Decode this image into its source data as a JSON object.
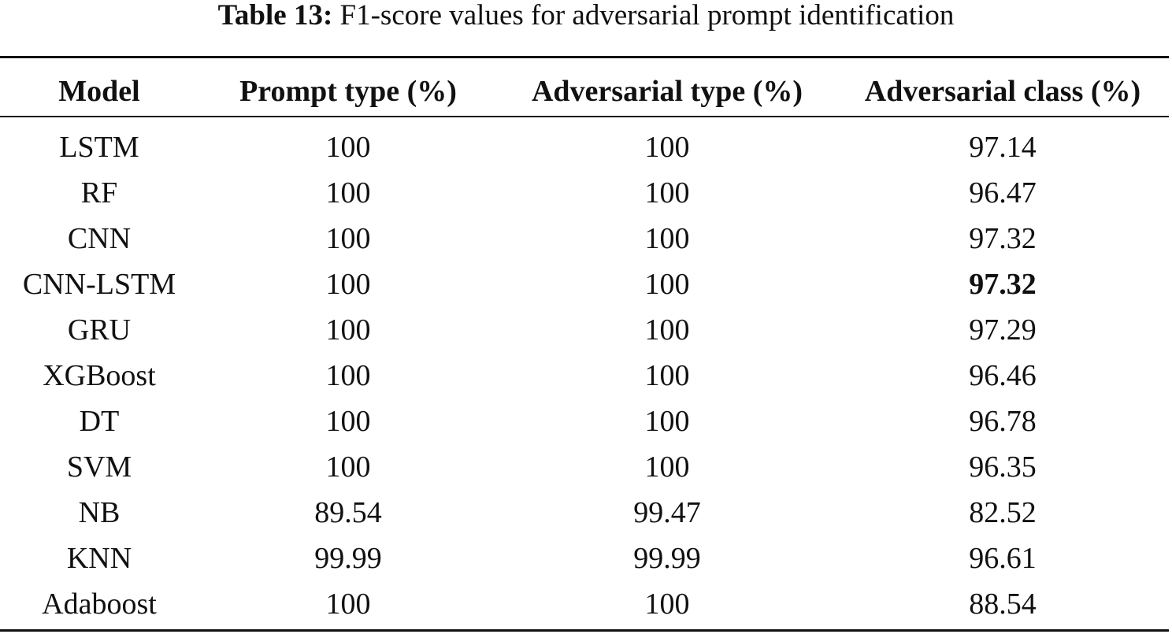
{
  "caption": {
    "label": "Table 13:",
    "text": "F1-score values for adversarial prompt identification"
  },
  "table": {
    "headers": [
      "Model",
      "Prompt type (%)",
      "Adversarial type (%)",
      "Adversarial class (%)"
    ],
    "rows": [
      {
        "model": "LSTM",
        "prompt_type": "100",
        "adversarial_type": "100",
        "adversarial_class": "97.14",
        "bold_class": false
      },
      {
        "model": "RF",
        "prompt_type": "100",
        "adversarial_type": "100",
        "adversarial_class": "96.47",
        "bold_class": false
      },
      {
        "model": "CNN",
        "prompt_type": "100",
        "adversarial_type": "100",
        "adversarial_class": "97.32",
        "bold_class": false
      },
      {
        "model": "CNN-LSTM",
        "prompt_type": "100",
        "adversarial_type": "100",
        "adversarial_class": "97.32",
        "bold_class": true
      },
      {
        "model": "GRU",
        "prompt_type": "100",
        "adversarial_type": "100",
        "adversarial_class": "97.29",
        "bold_class": false
      },
      {
        "model": "XGBoost",
        "prompt_type": "100",
        "adversarial_type": "100",
        "adversarial_class": "96.46",
        "bold_class": false
      },
      {
        "model": "DT",
        "prompt_type": "100",
        "adversarial_type": "100",
        "adversarial_class": "96.78",
        "bold_class": false
      },
      {
        "model": "SVM",
        "prompt_type": "100",
        "adversarial_type": "100",
        "adversarial_class": "96.35",
        "bold_class": false
      },
      {
        "model": "NB",
        "prompt_type": "89.54",
        "adversarial_type": "99.47",
        "adversarial_class": "82.52",
        "bold_class": false
      },
      {
        "model": "KNN",
        "prompt_type": "99.99",
        "adversarial_type": "99.99",
        "adversarial_class": "96.61",
        "bold_class": false
      },
      {
        "model": "Adaboost",
        "prompt_type": "100",
        "adversarial_type": "100",
        "adversarial_class": "88.54",
        "bold_class": false
      }
    ]
  }
}
